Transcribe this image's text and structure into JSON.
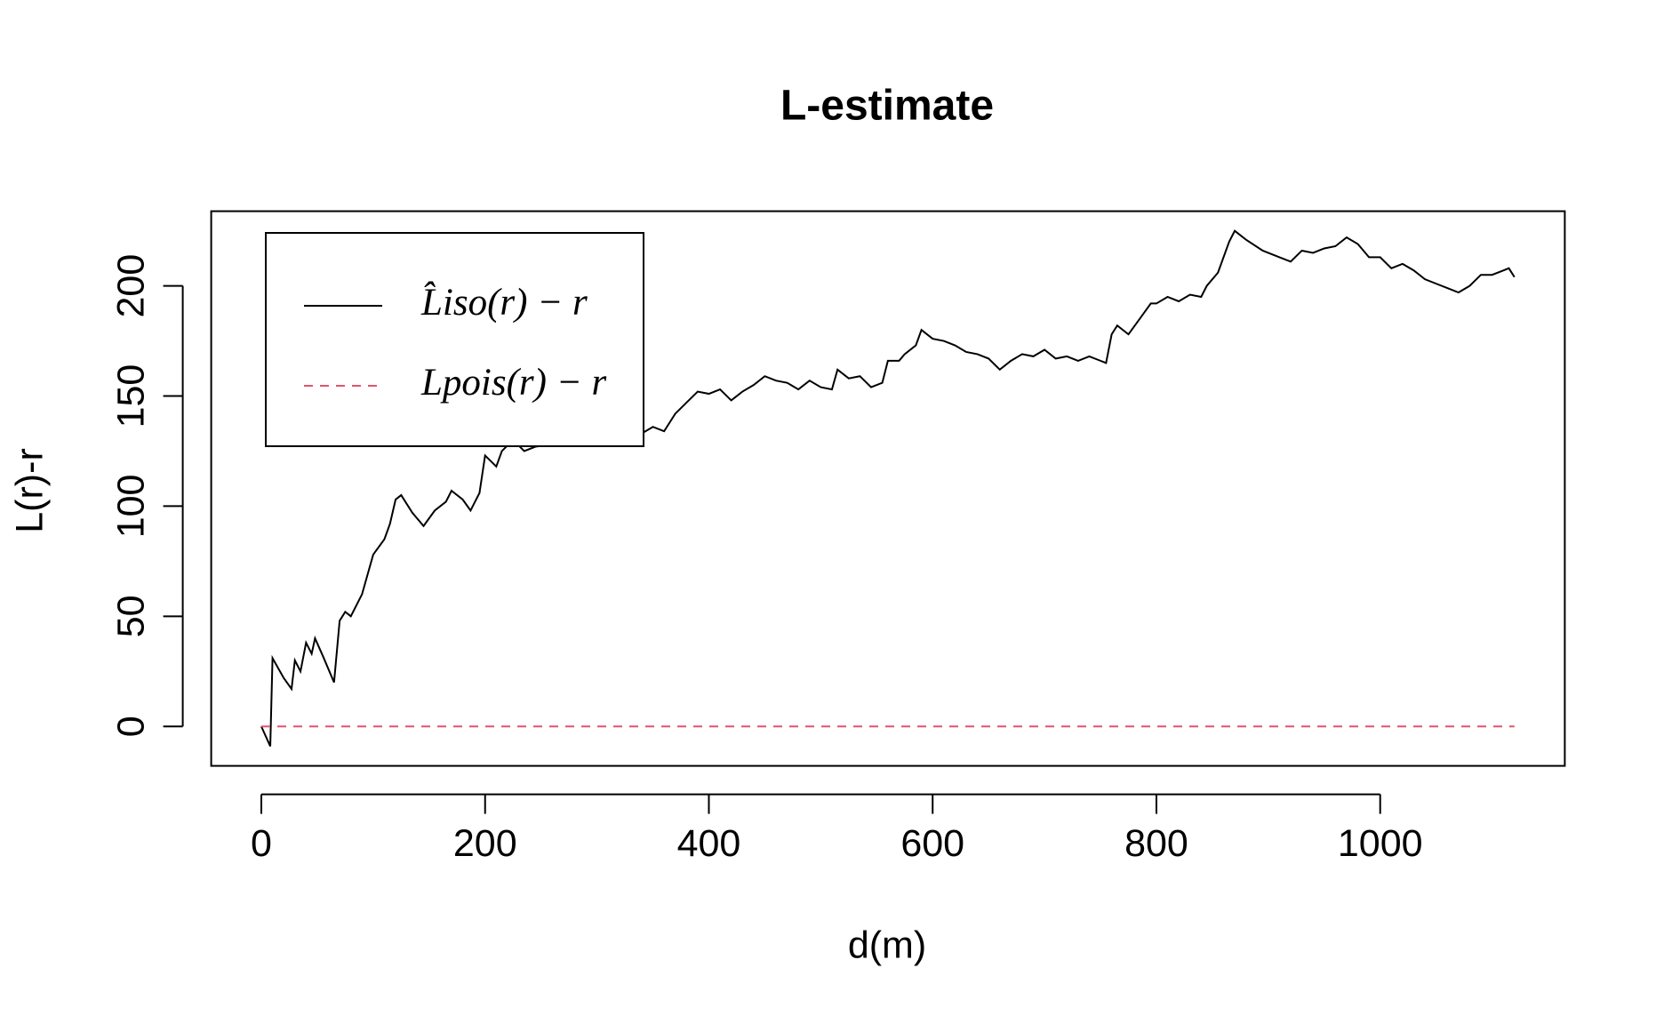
{
  "chart_data": {
    "type": "line",
    "title": "L-estimate",
    "x_label": "d(m)",
    "y_label": "L(r)-r",
    "xlim": [
      -44.8,
      1165
    ],
    "ylim": [
      -17.9,
      233.9
    ],
    "xticks": [
      0,
      200,
      400,
      600,
      800,
      1000
    ],
    "yticks": [
      0,
      50,
      100,
      150,
      200
    ],
    "legend": "top-left",
    "series": [
      {
        "name": "L̂iso(r) − r",
        "color": "#000000",
        "dash": "solid",
        "x": [
          0,
          8,
          10,
          20,
          27,
          30,
          35,
          40,
          45,
          48,
          55,
          65,
          70,
          75,
          80,
          85,
          90,
          100,
          110,
          115,
          120,
          125,
          135,
          145,
          155,
          165,
          170,
          180,
          187,
          195,
          200,
          210,
          215,
          225,
          235,
          245,
          260,
          270,
          280,
          290,
          300,
          310,
          320,
          330,
          340,
          350,
          360,
          370,
          380,
          390,
          400,
          410,
          420,
          430,
          440,
          450,
          460,
          470,
          480,
          490,
          500,
          510,
          515,
          525,
          535,
          545,
          555,
          560,
          570,
          575,
          585,
          590,
          600,
          610,
          620,
          630,
          640,
          650,
          660,
          670,
          680,
          690,
          700,
          710,
          720,
          730,
          740,
          750,
          755,
          760,
          765,
          775,
          785,
          795,
          800,
          810,
          820,
          830,
          840,
          845,
          855,
          865,
          870,
          880,
          895,
          910,
          920,
          930,
          940,
          950,
          960,
          970,
          980,
          990,
          1000,
          1010,
          1020,
          1030,
          1040,
          1050,
          1060,
          1070,
          1080,
          1090,
          1100,
          1110,
          1115,
          1120
        ],
        "values": [
          0,
          -9,
          31,
          22,
          17,
          30,
          25,
          38,
          33,
          40,
          32,
          20,
          48,
          52,
          50,
          55,
          60,
          78,
          85,
          92,
          103,
          105,
          97,
          91,
          98,
          102,
          107,
          103,
          98,
          106,
          123,
          118,
          125,
          130,
          125,
          127,
          128,
          130,
          137,
          134,
          138,
          140,
          136,
          138,
          133,
          136,
          134,
          142,
          147,
          152,
          151,
          153,
          148,
          152,
          155,
          159,
          157,
          156,
          153,
          157,
          154,
          153,
          162,
          158,
          159,
          154,
          156,
          166,
          166,
          169,
          173,
          180,
          176,
          175,
          173,
          170,
          169,
          167,
          162,
          166,
          169,
          168,
          171,
          167,
          168,
          166,
          168,
          166,
          165,
          178,
          182,
          178,
          185,
          192,
          192,
          195,
          193,
          196,
          195,
          200,
          206,
          220,
          225,
          221,
          216,
          213,
          211,
          216,
          215,
          217,
          218,
          222,
          219,
          213,
          213,
          208,
          210,
          207,
          203,
          201,
          199,
          197,
          200,
          205,
          205,
          207,
          208,
          204
        ]
      },
      {
        "name": "Lpois(r) − r",
        "color": "#df536b",
        "dash": "dashed",
        "x": [
          0,
          1120
        ],
        "values": [
          0,
          0
        ]
      }
    ]
  }
}
